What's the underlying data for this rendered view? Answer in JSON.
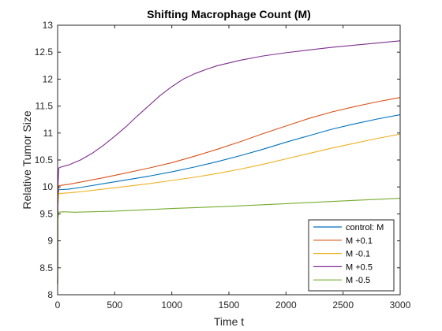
{
  "chart_data": {
    "type": "line",
    "title": "Shifting Macrophage Count (M)",
    "xlabel": "Time t",
    "ylabel": "Relative Tumor Size",
    "xlim": [
      0,
      3000
    ],
    "ylim": [
      8,
      13
    ],
    "xticks": [
      0,
      500,
      1000,
      1500,
      2000,
      2500,
      3000
    ],
    "yticks": [
      8,
      8.5,
      9,
      9.5,
      10,
      10.5,
      11,
      11.5,
      12,
      12.5,
      13
    ],
    "ytick_labels": [
      "8",
      "8.5",
      "9",
      "9.5",
      "10",
      "10.5",
      "11",
      "11.5",
      "12",
      "12.5",
      "13"
    ],
    "grid": false,
    "legend_position": "bottom-right",
    "series": [
      {
        "name": "control: M",
        "color": "#0072BD",
        "points": [
          [
            0,
            8.2
          ],
          [
            3,
            9.7
          ],
          [
            10,
            9.95
          ],
          [
            30,
            9.95
          ],
          [
            100,
            9.96
          ],
          [
            200,
            9.99
          ],
          [
            400,
            10.06
          ],
          [
            600,
            10.13
          ],
          [
            800,
            10.2
          ],
          [
            1000,
            10.28
          ],
          [
            1200,
            10.37
          ],
          [
            1400,
            10.47
          ],
          [
            1600,
            10.58
          ],
          [
            1800,
            10.7
          ],
          [
            2000,
            10.83
          ],
          [
            2200,
            10.95
          ],
          [
            2400,
            11.07
          ],
          [
            2600,
            11.17
          ],
          [
            2800,
            11.26
          ],
          [
            3000,
            11.34
          ]
        ]
      },
      {
        "name": "M +0.1",
        "color": "#D95319",
        "points": [
          [
            0,
            8.2
          ],
          [
            3,
            9.75
          ],
          [
            10,
            10.02
          ],
          [
            30,
            10.03
          ],
          [
            100,
            10.05
          ],
          [
            200,
            10.09
          ],
          [
            400,
            10.17
          ],
          [
            600,
            10.26
          ],
          [
            800,
            10.35
          ],
          [
            1000,
            10.45
          ],
          [
            1200,
            10.57
          ],
          [
            1400,
            10.7
          ],
          [
            1600,
            10.84
          ],
          [
            1800,
            10.99
          ],
          [
            2000,
            11.13
          ],
          [
            2200,
            11.27
          ],
          [
            2400,
            11.39
          ],
          [
            2600,
            11.49
          ],
          [
            2800,
            11.58
          ],
          [
            3000,
            11.66
          ]
        ]
      },
      {
        "name": "M -0.1",
        "color": "#EDB120",
        "points": [
          [
            0,
            8.2
          ],
          [
            3,
            9.65
          ],
          [
            10,
            9.87
          ],
          [
            30,
            9.88
          ],
          [
            100,
            9.89
          ],
          [
            200,
            9.91
          ],
          [
            400,
            9.96
          ],
          [
            600,
            10.01
          ],
          [
            800,
            10.06
          ],
          [
            1000,
            10.12
          ],
          [
            1200,
            10.18
          ],
          [
            1400,
            10.25
          ],
          [
            1600,
            10.33
          ],
          [
            1800,
            10.42
          ],
          [
            2000,
            10.52
          ],
          [
            2200,
            10.62
          ],
          [
            2400,
            10.72
          ],
          [
            2600,
            10.81
          ],
          [
            2800,
            10.9
          ],
          [
            3000,
            10.98
          ]
        ]
      },
      {
        "name": "M +0.5",
        "color": "#7E2F8E",
        "points": [
          [
            0,
            8.2
          ],
          [
            3,
            10.0
          ],
          [
            10,
            10.35
          ],
          [
            30,
            10.37
          ],
          [
            100,
            10.41
          ],
          [
            200,
            10.5
          ],
          [
            300,
            10.62
          ],
          [
            400,
            10.77
          ],
          [
            500,
            10.94
          ],
          [
            600,
            11.12
          ],
          [
            700,
            11.32
          ],
          [
            800,
            11.51
          ],
          [
            900,
            11.7
          ],
          [
            1000,
            11.86
          ],
          [
            1100,
            12.0
          ],
          [
            1200,
            12.1
          ],
          [
            1300,
            12.18
          ],
          [
            1400,
            12.25
          ],
          [
            1600,
            12.35
          ],
          [
            1800,
            12.43
          ],
          [
            2000,
            12.49
          ],
          [
            2200,
            12.54
          ],
          [
            2400,
            12.59
          ],
          [
            2600,
            12.63
          ],
          [
            2800,
            12.67
          ],
          [
            3000,
            12.71
          ]
        ]
      },
      {
        "name": "M -0.5",
        "color": "#77AC30",
        "points": [
          [
            0,
            8.2
          ],
          [
            3,
            9.4
          ],
          [
            10,
            9.53
          ],
          [
            50,
            9.54
          ],
          [
            150,
            9.53
          ],
          [
            300,
            9.54
          ],
          [
            500,
            9.55
          ],
          [
            800,
            9.58
          ],
          [
            1000,
            9.6
          ],
          [
            1500,
            9.64
          ],
          [
            2000,
            9.69
          ],
          [
            2500,
            9.74
          ],
          [
            3000,
            9.79
          ]
        ]
      }
    ]
  }
}
